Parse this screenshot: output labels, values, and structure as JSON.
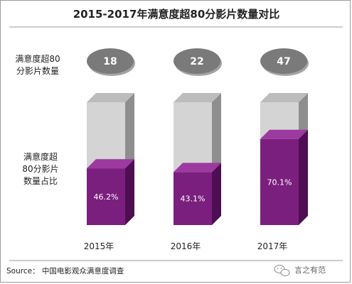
{
  "chart_data": {
    "type": "bar",
    "title": "2015-2017年满意度超80分影片数量对比",
    "categories": [
      "2015年",
      "2016年",
      "2017年"
    ],
    "series": [
      {
        "name": "满意度超80分影片数量",
        "values": [
          18,
          22,
          47
        ]
      },
      {
        "name": "满意度超80分影片数量占比",
        "values": [
          46.2,
          43.1,
          70.1
        ],
        "labels": [
          "46.2%",
          "43.1%",
          "70.1%"
        ]
      }
    ],
    "ylim": [
      0,
      100
    ],
    "legend_top": [
      "满意度超80",
      "分影片数量"
    ],
    "legend_bottom": [
      "满意度超",
      "80分影片",
      "数量占比"
    ]
  },
  "source": "Source： 中国电影观众满意度调查",
  "watermark": "言之有范",
  "colors": {
    "fill_front": "#7b1f7f",
    "fill_side": "#4e0f52",
    "fill_top": "#9c3aa0",
    "empty_front": "#d4d4d4",
    "empty_side": "#8e8e8e",
    "empty_top": "#bcbcbc",
    "ellipse": "#7a7a7a"
  }
}
